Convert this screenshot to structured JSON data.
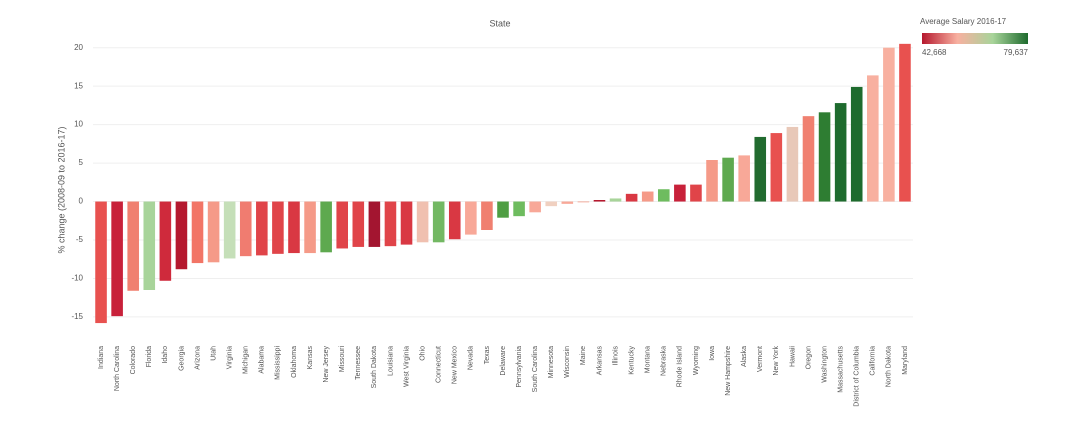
{
  "chart_data": {
    "type": "bar",
    "title": "State",
    "y_label": "% change (2008-09 to 2016-17)",
    "legend_title": "Average Salary 2016-17",
    "legend_min_label": "42,668",
    "legend_max_label": "79,637",
    "legend_colors": [
      "#b5182e",
      "#f8b0a0",
      "#a8d49a",
      "#1e6b2e"
    ],
    "categories": [
      "Indiana",
      "North Carolina",
      "Colorado",
      "Florida",
      "Idaho",
      "Georgia",
      "Arizona",
      "Utah",
      "Virginia",
      "Michigan",
      "Alabama",
      "Mississippi",
      "Oklahoma",
      "Kansas",
      "New Jersey",
      "Missouri",
      "Tennessee",
      "South Dakota",
      "Louisiana",
      "West Virginia",
      "Ohio",
      "Connecticut",
      "New Mexico",
      "Nevada",
      "Texas",
      "Delaware",
      "Pennsylvania",
      "South Carolina",
      "Minnesota",
      "Wisconsin",
      "Maine",
      "Arkansas",
      "Illinois",
      "Kentucky",
      "Montana",
      "Nebraska",
      "Rhode Island",
      "Wyoming",
      "Iowa",
      "New Hampshire",
      "Alaska",
      "Vermont",
      "New York",
      "Hawaii",
      "Oregon",
      "Washington",
      "Massachusetts",
      "District of Columbia",
      "California",
      "North Dakota",
      "Maryland"
    ],
    "values": [
      -15.8,
      -14.9,
      -11.6,
      -11.5,
      -10.3,
      -8.8,
      -8.0,
      -7.9,
      -7.4,
      -7.1,
      -7.0,
      -6.8,
      -6.7,
      -6.7,
      -6.6,
      -6.1,
      -5.9,
      -5.9,
      -5.8,
      -5.6,
      -5.3,
      -5.3,
      -4.9,
      -4.3,
      -3.7,
      -2.1,
      -1.9,
      -1.4,
      -0.6,
      -0.3,
      -0.1,
      0.2,
      0.4,
      1.0,
      1.3,
      1.6,
      2.2,
      2.2,
      5.4,
      5.7,
      6.0,
      8.4,
      8.9,
      9.7,
      11.1,
      11.6,
      12.8,
      14.9,
      16.4,
      20.0,
      20.5
    ],
    "colors": [
      "#e8514f",
      "#c8213a",
      "#f08070",
      "#a8d49a",
      "#cf2a3c",
      "#b5182e",
      "#f27566",
      "#f59a88",
      "#c5dfb8",
      "#f07c70",
      "#e04449",
      "#e04449",
      "#d93843",
      "#f59a88",
      "#5ea94f",
      "#e04449",
      "#e04449",
      "#a31530",
      "#e04449",
      "#d93843",
      "#f0c0b0",
      "#73b863",
      "#d93843",
      "#f8a898",
      "#f08070",
      "#4f9e43",
      "#6ebc5f",
      "#f8a898",
      "#f0d0c0",
      "#f8a898",
      "#f59a88",
      "#b5182e",
      "#a8d49a",
      "#d93843",
      "#f59a88",
      "#6ebc5f",
      "#c8213a",
      "#e04449",
      "#f59a88",
      "#5ea94f",
      "#f8a898",
      "#216b2f",
      "#e8514f",
      "#e8c8b8",
      "#f08070",
      "#2e7d32",
      "#1e6b2e",
      "#1e6b2e",
      "#f8b0a0",
      "#f8b0a0",
      "#e8514f"
    ],
    "ylim": [
      -18,
      21
    ],
    "yticks": [
      -15,
      -10,
      -5,
      0,
      5,
      10,
      15,
      20
    ],
    "grid": true
  }
}
